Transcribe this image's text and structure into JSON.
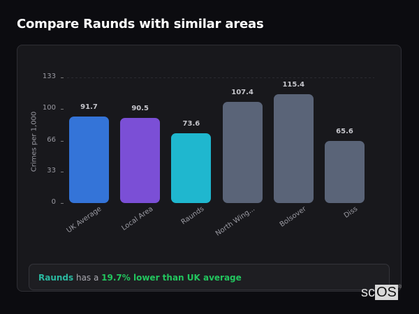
{
  "header": {
    "title": "Compare Raunds with similar areas"
  },
  "chart_data": {
    "type": "bar",
    "title": "Compare Raunds with similar areas",
    "xlabel": "",
    "ylabel": "Crimes per 1,000",
    "ylim": [
      0,
      133
    ],
    "yticks": [
      0,
      33,
      66,
      100,
      133
    ],
    "grid": "dashed line at top tick only",
    "categories": [
      "UK Average",
      "Local Area",
      "Raunds",
      "North Wing...",
      "Bolsover",
      "Diss"
    ],
    "values": [
      91.7,
      90.5,
      73.6,
      107.4,
      115.4,
      65.6
    ],
    "value_labels": [
      "91.7",
      "90.5",
      "73.6",
      "107.4",
      "115.4",
      "65.6"
    ],
    "colors": [
      "#3474d8",
      "#7b4fd6",
      "#1fb7cf",
      "#5a6478",
      "#5a6478",
      "#5a6478"
    ]
  },
  "callout": {
    "place": "Raunds",
    "middle": " has a ",
    "stat": "19.7% lower than UK average"
  },
  "logo": {
    "prefix": "sc",
    "boxed": "OS",
    "mark": "®"
  }
}
